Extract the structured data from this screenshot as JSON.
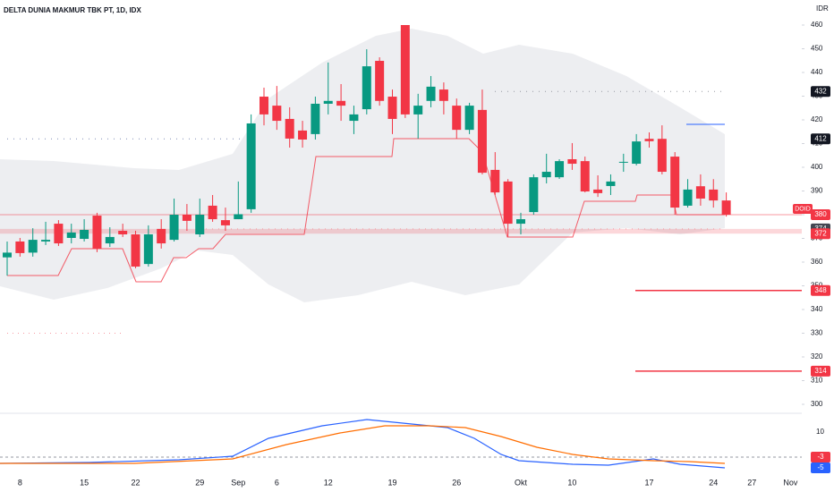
{
  "chart_data": {
    "type": "candlestick",
    "title": "DELTA DUNIA MAKMUR TBK PT, 1D, IDX",
    "currency": "IDR",
    "symbol_label": "DOID",
    "categories": [
      null,
      "8",
      null,
      null,
      null,
      null,
      "15",
      null,
      null,
      null,
      "22",
      null,
      null,
      null,
      null,
      "29",
      null,
      null,
      "Sep",
      null,
      null,
      "6",
      null,
      null,
      null,
      "12",
      null,
      null,
      null,
      null,
      "19",
      null,
      null,
      null,
      null,
      "26",
      null,
      null,
      null,
      null,
      "Okt",
      null,
      null,
      null,
      "10",
      null,
      null,
      null,
      null,
      null,
      "17",
      null,
      null,
      null,
      null,
      "24",
      null,
      null,
      "27",
      null,
      null,
      "Nov"
    ],
    "open": [
      362,
      368.7,
      364,
      368.7,
      376.2,
      370.2,
      369.8,
      379.6,
      367.9,
      373.2,
      371.7,
      359.2,
      374,
      369.4,
      380,
      371.7,
      383.8,
      377.7,
      378.1,
      382.3,
      429.8,
      426,
      420.4,
      415.5,
      414,
      426.8,
      428,
      419.6,
      424.5,
      444.9,
      429.8,
      460,
      422.3,
      428,
      432.8,
      426,
      415.8,
      424.2,
      398.9,
      394,
      376.2,
      381.1,
      395.8,
      395.8,
      403.4,
      402.6,
      390.6,
      392.1,
      402,
      401.5,
      412,
      412,
      404.5,
      383.8,
      392,
      390.6,
      386,
      null,
      null,
      null,
      null,
      null
    ],
    "high": [
      368.7,
      370.2,
      374.3,
      377,
      377.7,
      376.2,
      378.1,
      380.8,
      374.7,
      376.2,
      373.2,
      375.5,
      378.1,
      386.8,
      384.5,
      386.8,
      388.3,
      383,
      394,
      422.3,
      433.6,
      434.3,
      425.3,
      419.6,
      429.8,
      444.2,
      435.1,
      426,
      449.8,
      446.4,
      432.8,
      460,
      431,
      438.5,
      435.8,
      429,
      427.2,
      432.8,
      406.4,
      395,
      380.8,
      397,
      405.7,
      403.4,
      410.2,
      404.5,
      396.6,
      397,
      405.7,
      414,
      414.7,
      417.7,
      406.4,
      395,
      397,
      395,
      389.4,
      null,
      null,
      null,
      null,
      null
    ],
    "low": [
      354.3,
      362.3,
      362.3,
      367.2,
      366.8,
      367.9,
      368.7,
      364.2,
      366.4,
      370.6,
      357.4,
      358.1,
      365.7,
      368.7,
      373.2,
      370.6,
      377,
      373.2,
      378.1,
      380.8,
      417.7,
      415.8,
      408.3,
      408.3,
      411.7,
      422.3,
      419.6,
      414,
      422.3,
      426,
      414,
      420.8,
      412.1,
      425.3,
      422.3,
      412.1,
      414,
      397,
      388.3,
      370.6,
      371.7,
      380,
      393.2,
      395.1,
      398.9,
      389.4,
      387.5,
      388.3,
      398.1,
      400.8,
      408.3,
      397,
      380,
      383,
      383.8,
      383,
      379.2,
      null,
      null,
      null,
      null,
      null
    ],
    "close": [
      364,
      363.8,
      369.4,
      369.4,
      367.9,
      372.5,
      373.6,
      365.7,
      370.6,
      371.7,
      358.1,
      371.7,
      367.9,
      380,
      377.4,
      380,
      378.1,
      375.5,
      380.2,
      418.5,
      422.3,
      419.6,
      412.1,
      411.7,
      426.8,
      428,
      426,
      422.3,
      442.6,
      428,
      420.4,
      422.3,
      426,
      434,
      428,
      415.8,
      426,
      397.7,
      389.4,
      376.2,
      378.1,
      395.8,
      398.1,
      402.6,
      401.5,
      389.8,
      389.1,
      394,
      402.3,
      410.9,
      411,
      398.1,
      383,
      390.6,
      386.8,
      386,
      380,
      null,
      null,
      null,
      null,
      null
    ],
    "up_color": "#089981",
    "down_color": "#f23645",
    "ylim": [
      300,
      460
    ],
    "yticks": [
      300,
      310,
      320,
      330,
      340,
      350,
      360,
      370,
      380,
      390,
      400,
      410,
      420,
      430,
      440,
      450,
      460
    ],
    "price_labels": [
      432,
      412,
      380,
      374,
      372,
      348,
      314
    ],
    "price_label_colors": [
      "#131722",
      "#131722",
      "#f23645",
      "#434651",
      "#f23645",
      "#f23645",
      "#f23645"
    ],
    "level_marks": [
      330
    ],
    "oscillator": {
      "yticks": [
        10
      ],
      "last_values": [
        -3,
        -5
      ],
      "colors": [
        "#f23645",
        "#2962ff"
      ]
    }
  }
}
